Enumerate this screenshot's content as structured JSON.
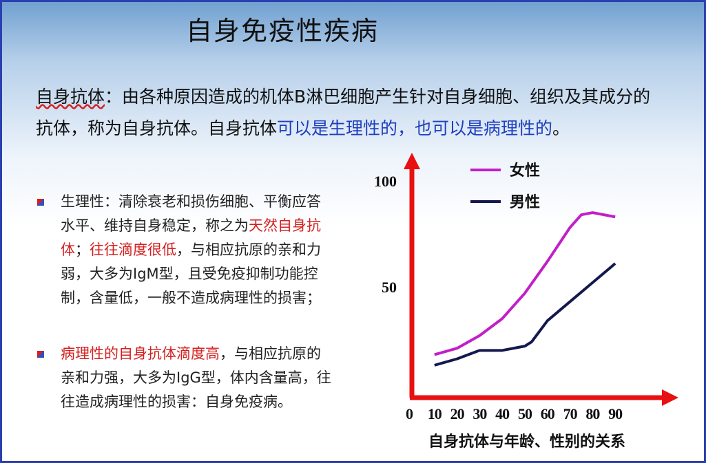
{
  "title": "自身免疫性疾病",
  "intro": {
    "runs": [
      {
        "text": "自身抗体",
        "underline": true
      },
      {
        "text": "：由各种原因造成的机体B淋巴细胞产生针对自身细胞、组织及其成分的抗体，称为自身抗体。自身抗体"
      },
      {
        "text": "可以是生理性的，也可以是病理性的",
        "color": "#1f3fbf"
      },
      {
        "text": "。"
      }
    ]
  },
  "bullets": [
    {
      "runs": [
        {
          "text": "生理性：清除衰老和损伤细胞、平衡应答水平、维持自身稳定，称之为"
        },
        {
          "text": "天然自身抗体",
          "color": "#d42020"
        },
        {
          "text": "；"
        },
        {
          "text": "往往滴度很低",
          "color": "#d42020"
        },
        {
          "text": "，与相应抗原的亲和力弱，大多为IgM型，且受免疫抑制功能控制，含量低，一般不造成病理性的损害；"
        }
      ]
    },
    {
      "runs": [
        {
          "text": "病理性的自身抗体滴度高",
          "color": "#d42020"
        },
        {
          "text": "，与相应抗原的亲和力强，大多为IgG型，体内含量高，往往造成病理性的损害：自身免疫病。"
        }
      ]
    }
  ],
  "chart_data": {
    "type": "line",
    "x_label": "自身抗体与年龄、性别的关系",
    "xlim": [
      0,
      118
    ],
    "ylim": [
      0,
      112
    ],
    "xticks": [
      0,
      10,
      20,
      30,
      40,
      50,
      60,
      70,
      80,
      90
    ],
    "yticks": [
      50,
      100
    ],
    "series": [
      {
        "name": "女性",
        "color": "#c21fc8",
        "x": [
          10,
          20,
          30,
          40,
          50,
          60,
          70,
          75,
          80,
          90
        ],
        "values": [
          19,
          22,
          28,
          36,
          48,
          63,
          79,
          85,
          86,
          84
        ]
      },
      {
        "name": "男性",
        "color": "#15184f",
        "x": [
          10,
          20,
          30,
          40,
          50,
          53,
          60,
          70,
          80,
          90
        ],
        "values": [
          14,
          17,
          21,
          21,
          23,
          25,
          35,
          44,
          53,
          62
        ]
      }
    ]
  }
}
